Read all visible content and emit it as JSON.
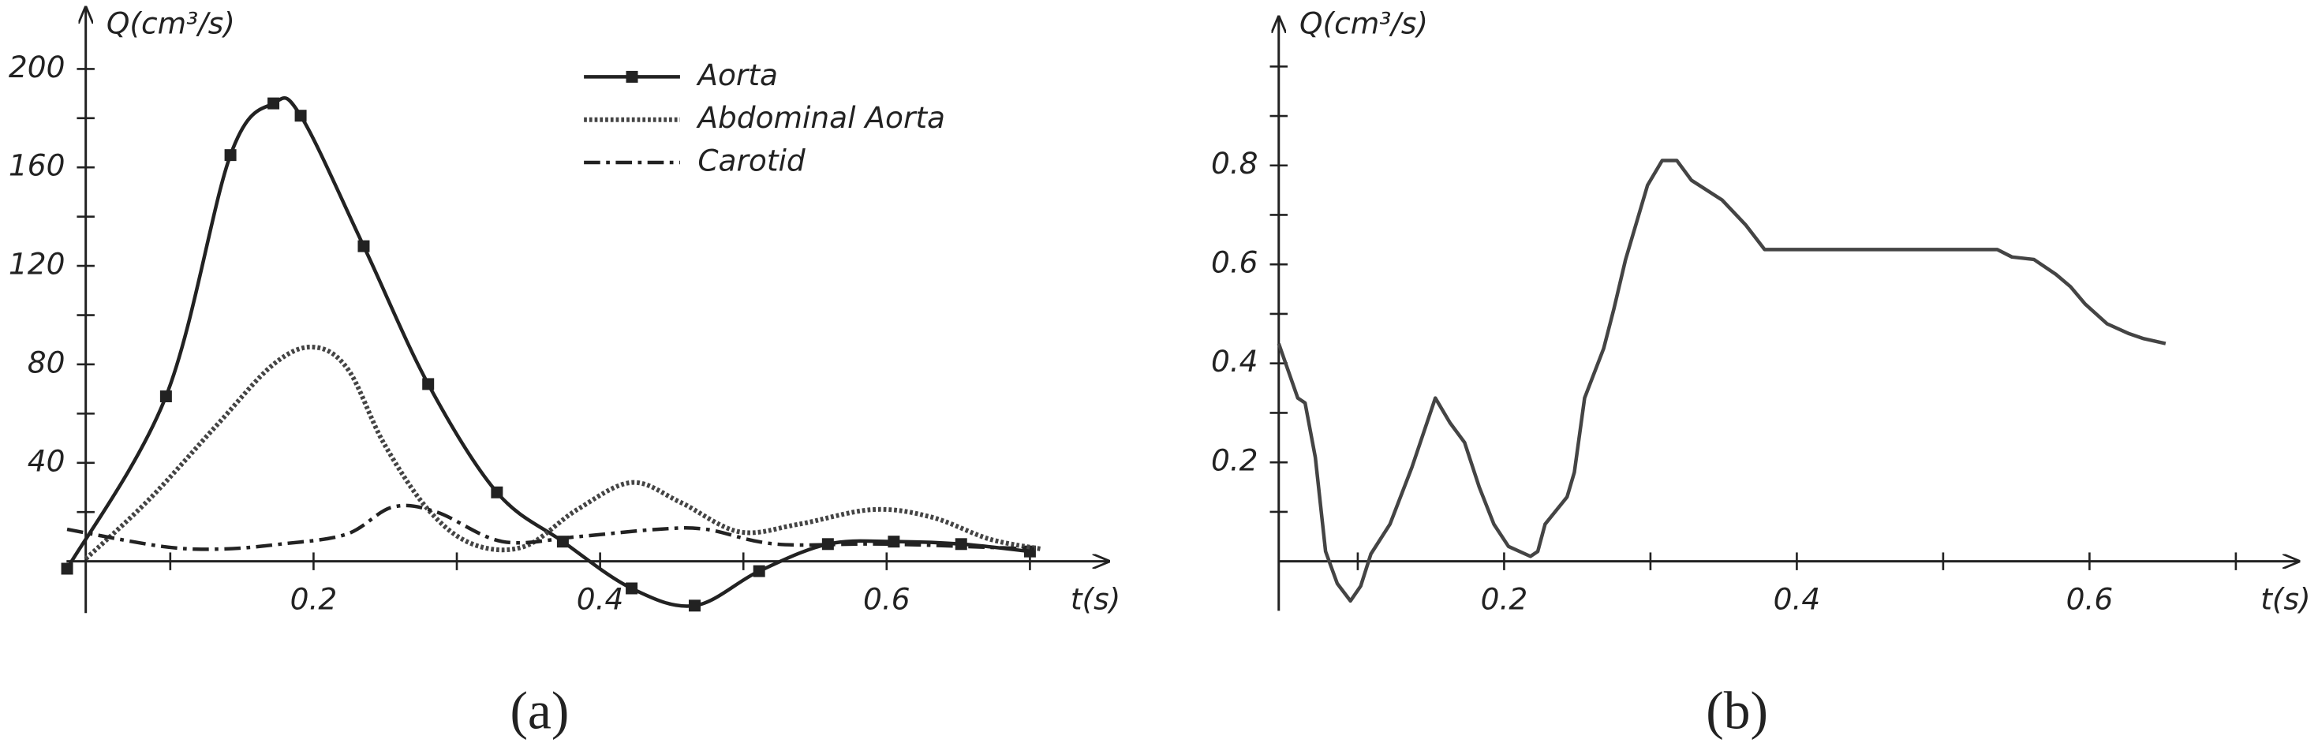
{
  "chart_data": [
    {
      "type": "line",
      "caption": "(a)",
      "y_label": "Q(cm³/s)",
      "x_label": "t(s)",
      "xlim": [
        0.041,
        0.755
      ],
      "ylim": [
        -21,
        225
      ],
      "xticks": [
        0.2,
        0.4,
        0.6
      ],
      "minor_xticks": [
        0.1,
        0.3,
        0.5,
        0.7
      ],
      "yticks": [
        40,
        80,
        120,
        160,
        200
      ],
      "minor_yticks": [
        20,
        60,
        100,
        140,
        180
      ],
      "smooth": true,
      "legend": "upper center",
      "series": [
        {
          "name": "Aorta",
          "color": "#222222",
          "style": "solid",
          "markers": true,
          "x": [
            0.028,
            0.097,
            0.142,
            0.172,
            0.191,
            0.235,
            0.28,
            0.328,
            0.374,
            0.422,
            0.466,
            0.511,
            0.559,
            0.605,
            0.652,
            0.7
          ],
          "values": [
            -3,
            67,
            165,
            186,
            181,
            128,
            72,
            28,
            8,
            -11,
            -18,
            -4,
            7,
            8,
            7,
            4
          ]
        },
        {
          "name": "Abdominal Aorta",
          "color": "#444444",
          "style": "dotted",
          "markers": false,
          "x": [
            0.041,
            0.085,
            0.132,
            0.172,
            0.2,
            0.224,
            0.249,
            0.28,
            0.311,
            0.347,
            0.384,
            0.422,
            0.456,
            0.497,
            0.538,
            0.59,
            0.631,
            0.672,
            0.708
          ],
          "values": [
            1,
            25,
            55,
            80,
            87,
            78,
            48,
            21,
            7,
            6,
            21,
            32,
            24,
            12,
            15,
            21,
            18,
            9,
            5
          ]
        },
        {
          "name": "Carotid",
          "color": "#222222",
          "style": "dashdot",
          "markers": false,
          "x": [
            0.028,
            0.095,
            0.136,
            0.177,
            0.223,
            0.255,
            0.286,
            0.332,
            0.384,
            0.44,
            0.474,
            0.523,
            0.6,
            0.703
          ],
          "values": [
            13,
            6,
            5,
            7,
            11,
            22,
            20,
            8,
            10,
            13,
            13,
            7,
            7,
            5
          ]
        }
      ]
    },
    {
      "type": "line",
      "caption": "(b)",
      "y_label": "Q(cm³/s)",
      "x_label": "t(s)",
      "xlim": [
        0.046,
        0.743
      ],
      "ylim": [
        -0.1,
        1.1
      ],
      "xticks": [
        0.2,
        0.4,
        0.6
      ],
      "minor_xticks": [
        0.1,
        0.3,
        0.5,
        0.7
      ],
      "yticks": [
        0.2,
        0.4,
        0.6,
        0.8
      ],
      "minor_yticks": [
        0.1,
        0.3,
        0.5,
        0.7,
        0.9,
        1.0
      ],
      "smooth": false,
      "series": [
        {
          "color": "#444444",
          "style": "solid",
          "markers": false,
          "x": [
            0.046,
            0.059,
            0.064,
            0.071,
            0.078,
            0.086,
            0.095,
            0.102,
            0.109,
            0.122,
            0.137,
            0.153,
            0.163,
            0.173,
            0.183,
            0.193,
            0.203,
            0.218,
            0.223,
            0.228,
            0.243,
            0.248,
            0.255,
            0.268,
            0.275,
            0.283,
            0.298,
            0.308,
            0.318,
            0.328,
            0.349,
            0.365,
            0.378,
            0.39,
            0.537,
            0.547,
            0.562,
            0.577,
            0.587,
            0.597,
            0.612,
            0.627,
            0.637,
            0.652
          ],
          "values": [
            0.44,
            0.33,
            0.32,
            0.21,
            0.02,
            -0.045,
            -0.08,
            -0.05,
            0.015,
            0.075,
            0.19,
            0.33,
            0.28,
            0.24,
            0.15,
            0.075,
            0.03,
            0.01,
            0.02,
            0.075,
            0.13,
            0.18,
            0.33,
            0.43,
            0.51,
            0.61,
            0.76,
            0.81,
            0.81,
            0.77,
            0.73,
            0.68,
            0.63,
            0.63,
            0.63,
            0.615,
            0.61,
            0.58,
            0.555,
            0.52,
            0.48,
            0.46,
            0.45,
            0.44
          ]
        }
      ]
    }
  ]
}
